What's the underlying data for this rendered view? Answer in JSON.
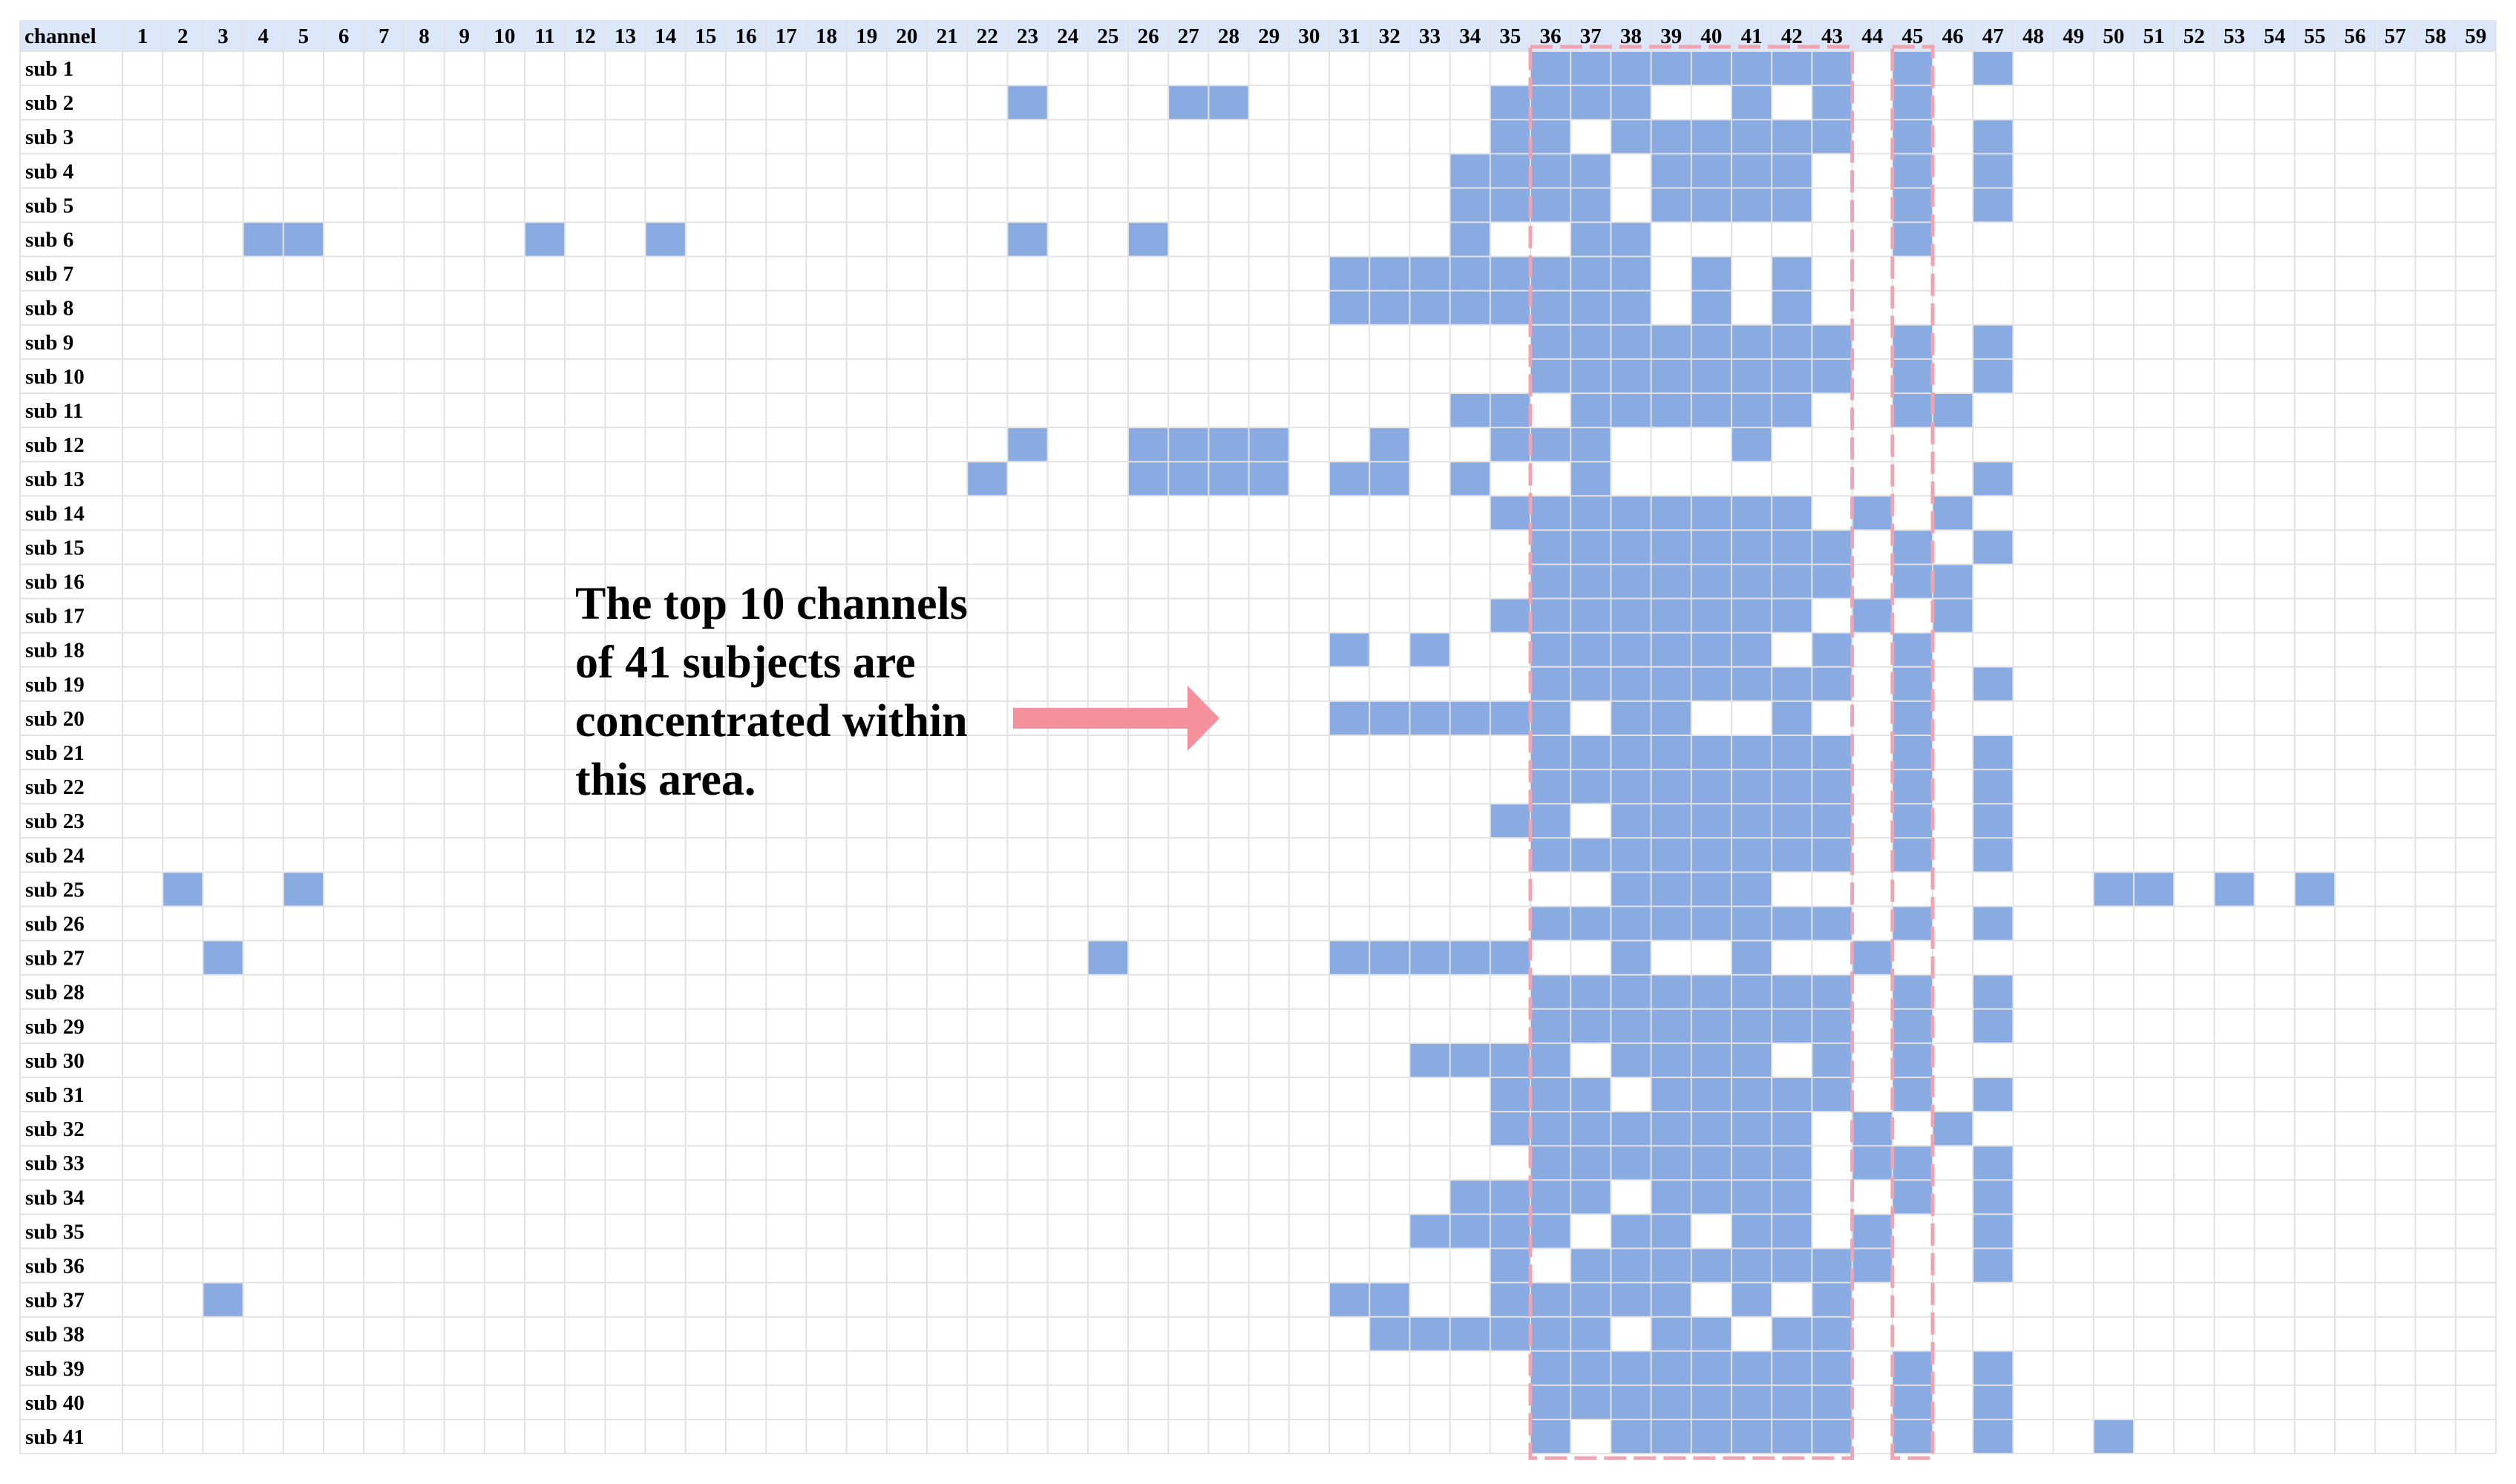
{
  "chart_data": {
    "type": "heatmap",
    "corner_label": "channel",
    "channels": [
      1,
      2,
      3,
      4,
      5,
      6,
      7,
      8,
      9,
      10,
      11,
      12,
      13,
      14,
      15,
      16,
      17,
      18,
      19,
      20,
      21,
      22,
      23,
      24,
      25,
      26,
      27,
      28,
      29,
      30,
      31,
      32,
      33,
      34,
      35,
      36,
      37,
      38,
      39,
      40,
      41,
      42,
      43,
      44,
      45,
      46,
      47,
      48,
      49,
      50,
      51,
      52,
      53,
      54,
      55,
      56,
      57,
      58,
      59
    ],
    "subjects": [
      "sub 1",
      "sub 2",
      "sub 3",
      "sub 4",
      "sub 5",
      "sub 6",
      "sub 7",
      "sub 8",
      "sub 9",
      "sub 10",
      "sub 11",
      "sub 12",
      "sub 13",
      "sub 14",
      "sub 15",
      "sub 16",
      "sub 17",
      "sub 18",
      "sub 19",
      "sub 20",
      "sub 21",
      "sub 22",
      "sub 23",
      "sub 24",
      "sub 25",
      "sub 26",
      "sub 27",
      "sub 28",
      "sub 29",
      "sub 30",
      "sub 31",
      "sub 32",
      "sub 33",
      "sub 34",
      "sub 35",
      "sub 36",
      "sub 37",
      "sub 38",
      "sub 39",
      "sub 40",
      "sub 41"
    ],
    "selected_channels": [
      [
        36,
        37,
        38,
        39,
        40,
        41,
        42,
        43,
        45,
        47
      ],
      [
        23,
        27,
        28,
        35,
        36,
        37,
        38,
        41,
        43,
        45
      ],
      [
        35,
        36,
        38,
        39,
        40,
        41,
        42,
        43,
        45,
        47
      ],
      [
        34,
        35,
        36,
        37,
        39,
        40,
        41,
        42,
        45,
        47
      ],
      [
        34,
        35,
        36,
        37,
        39,
        40,
        41,
        42,
        45,
        47
      ],
      [
        4,
        5,
        11,
        14,
        23,
        26,
        34,
        37,
        38,
        45
      ],
      [
        31,
        32,
        33,
        34,
        35,
        36,
        37,
        38,
        40,
        42
      ],
      [
        31,
        32,
        33,
        34,
        35,
        36,
        37,
        38,
        40,
        42
      ],
      [
        36,
        37,
        38,
        39,
        40,
        41,
        42,
        43,
        45,
        47
      ],
      [
        36,
        37,
        38,
        39,
        40,
        41,
        42,
        43,
        45,
        47
      ],
      [
        34,
        35,
        37,
        38,
        39,
        40,
        41,
        42,
        45,
        46
      ],
      [
        23,
        26,
        27,
        28,
        29,
        32,
        35,
        36,
        37,
        41
      ],
      [
        22,
        26,
        27,
        28,
        29,
        31,
        32,
        34,
        37,
        47
      ],
      [
        35,
        36,
        37,
        38,
        39,
        40,
        41,
        42,
        44,
        46
      ],
      [
        36,
        37,
        38,
        39,
        40,
        41,
        42,
        43,
        45,
        47
      ],
      [
        36,
        37,
        38,
        39,
        40,
        41,
        42,
        43,
        45,
        46
      ],
      [
        35,
        36,
        37,
        38,
        39,
        40,
        41,
        42,
        44,
        46
      ],
      [
        31,
        33,
        36,
        37,
        38,
        39,
        40,
        41,
        43,
        45
      ],
      [
        36,
        37,
        38,
        39,
        40,
        41,
        42,
        43,
        45,
        47
      ],
      [
        31,
        32,
        33,
        34,
        35,
        36,
        38,
        39,
        42,
        45
      ],
      [
        36,
        37,
        38,
        39,
        40,
        41,
        42,
        43,
        45,
        47
      ],
      [
        36,
        37,
        38,
        39,
        40,
        41,
        42,
        43,
        45,
        47
      ],
      [
        35,
        36,
        38,
        39,
        40,
        41,
        42,
        43,
        45,
        47
      ],
      [
        36,
        37,
        38,
        39,
        40,
        41,
        42,
        43,
        45,
        47
      ],
      [
        2,
        5,
        38,
        39,
        40,
        41,
        50,
        51,
        53,
        55
      ],
      [
        36,
        37,
        38,
        39,
        40,
        41,
        42,
        43,
        45,
        47
      ],
      [
        3,
        25,
        31,
        32,
        33,
        34,
        35,
        38,
        41,
        44
      ],
      [
        36,
        37,
        38,
        39,
        40,
        41,
        42,
        43,
        45,
        47
      ],
      [
        36,
        37,
        38,
        39,
        40,
        41,
        42,
        43,
        45,
        47
      ],
      [
        33,
        34,
        35,
        36,
        38,
        39,
        40,
        41,
        43,
        45
      ],
      [
        35,
        36,
        37,
        39,
        40,
        41,
        42,
        43,
        45,
        47
      ],
      [
        35,
        36,
        37,
        38,
        39,
        40,
        41,
        42,
        44,
        46
      ],
      [
        36,
        37,
        38,
        39,
        40,
        41,
        42,
        44,
        45,
        47
      ],
      [
        34,
        35,
        36,
        37,
        39,
        40,
        41,
        42,
        45,
        47
      ],
      [
        33,
        34,
        35,
        36,
        38,
        39,
        41,
        42,
        44,
        47
      ],
      [
        35,
        37,
        38,
        39,
        40,
        41,
        42,
        43,
        44,
        47
      ],
      [
        3,
        31,
        32,
        35,
        36,
        37,
        38,
        39,
        41,
        43
      ],
      [
        32,
        33,
        34,
        35,
        36,
        37,
        39,
        40,
        42,
        43
      ],
      [
        36,
        37,
        38,
        39,
        40,
        41,
        42,
        43,
        45,
        47
      ],
      [
        36,
        37,
        38,
        39,
        40,
        41,
        42,
        43,
        45,
        47
      ],
      [
        36,
        38,
        39,
        40,
        41,
        42,
        43,
        45,
        47,
        50
      ]
    ],
    "annotation": "The top 10 channels of 41 subjects are concentrated within this area.",
    "highlight_regions": [
      {
        "channels": [
          36,
          43
        ]
      },
      {
        "channels": [
          45,
          45
        ]
      }
    ],
    "colors": {
      "selected": "#8aabe2",
      "header": "#dbe7f8",
      "grid": "#e2e2e2",
      "highlight_border": "#f0a3b0",
      "arrow": "#f4919d"
    }
  }
}
